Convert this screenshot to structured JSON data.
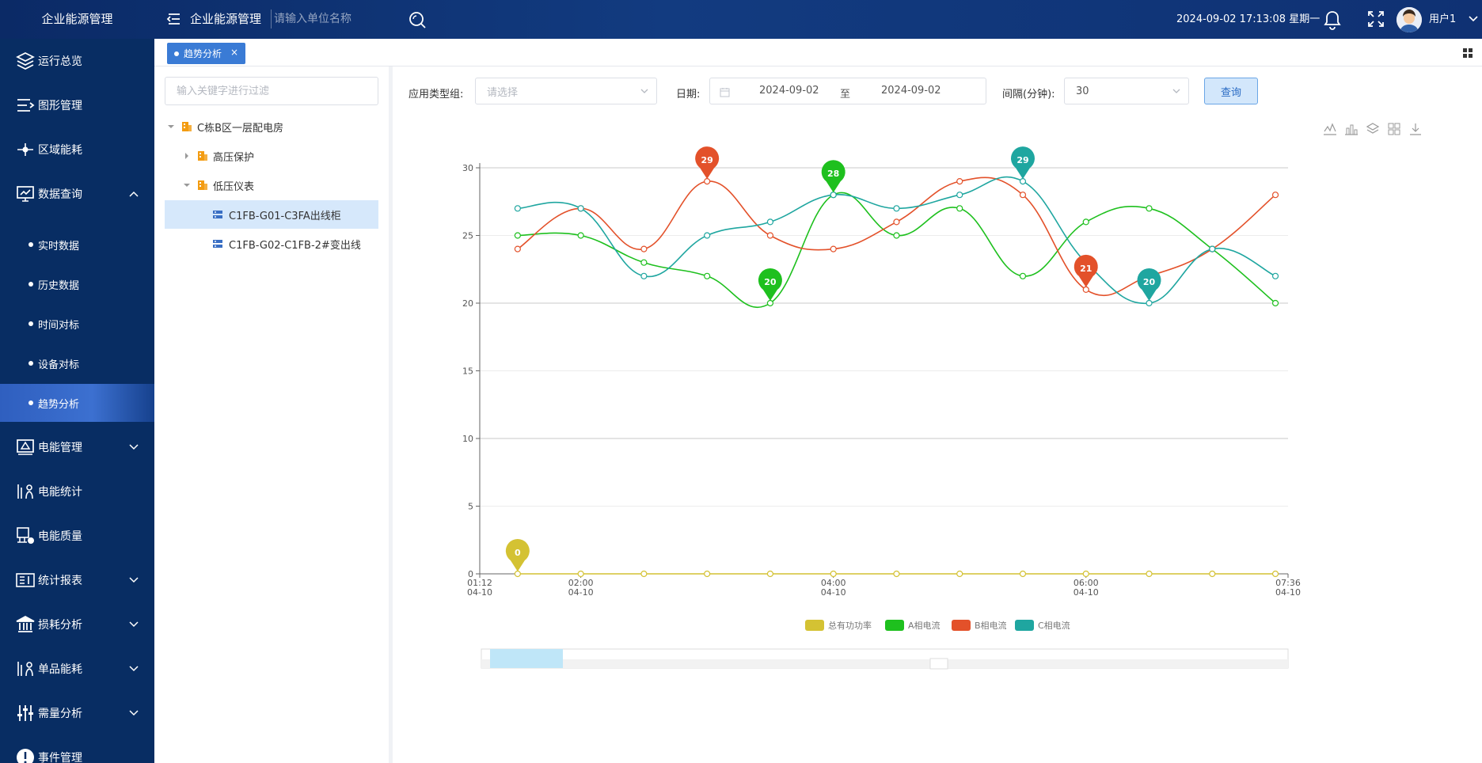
{
  "header": {
    "brand": "企业能源管理",
    "title": "企业能源管理",
    "search_placeholder": "请输入单位名称",
    "datetime": "2024-09-02 17:13:08 星期一",
    "username": "用户1"
  },
  "sidebar": {
    "items": [
      {
        "label": "运行总览",
        "icon": "layers-icon"
      },
      {
        "label": "图形管理",
        "icon": "menu-arrow-icon"
      },
      {
        "label": "区域能耗",
        "icon": "node-icon"
      },
      {
        "label": "数据查询",
        "icon": "monitor-icon",
        "expanded": true
      },
      {
        "label": "电能管理",
        "icon": "power-monitor-icon"
      },
      {
        "label": "电能统计",
        "icon": "stats-icon"
      },
      {
        "label": "电能质量",
        "icon": "quality-icon"
      },
      {
        "label": "统计报表",
        "icon": "report-icon"
      },
      {
        "label": "损耗分析",
        "icon": "bank-icon"
      },
      {
        "label": "单品能耗",
        "icon": "stats-icon"
      },
      {
        "label": "需量分析",
        "icon": "sliders-icon"
      },
      {
        "label": "事件管理",
        "icon": "alert-icon"
      }
    ],
    "sub_items": [
      {
        "label": "实时数据"
      },
      {
        "label": "历史数据"
      },
      {
        "label": "时间对标"
      },
      {
        "label": "设备对标"
      },
      {
        "label": "趋势分析",
        "active": true
      }
    ]
  },
  "tabs": [
    {
      "label": "趋势分析",
      "close": "×"
    }
  ],
  "tree": {
    "filter_placeholder": "输入关键字进行过滤",
    "nodes": [
      {
        "label": "C栋B区一层配电房"
      },
      {
        "label": "高压保护"
      },
      {
        "label": "低压仪表"
      },
      {
        "label": "C1FB-G01-C3FA出线柜",
        "selected": true
      },
      {
        "label": "C1FB-G02-C1FB-2#变出线"
      }
    ]
  },
  "filters": {
    "type_label": "应用类型组:",
    "type_placeholder": "请选择",
    "date_label": "日期:",
    "date_start": "2024-09-02",
    "date_sep": "至",
    "date_end": "2024-09-02",
    "interval_label": "间隔(分钟):",
    "interval_value": "30",
    "query_button": "查询"
  },
  "colors": {
    "total": "#d4c233",
    "a": "#1ec01e",
    "b": "#e3512a",
    "c": "#1fa6a0",
    "grid": "#c8c8c8",
    "accent": "#3a7bd5"
  },
  "chart_data": {
    "type": "line",
    "smooth": true,
    "ylim": [
      0,
      30
    ],
    "y_ticks": [
      "0",
      "5",
      "10",
      "15",
      "20",
      "25",
      "30"
    ],
    "x_ticks": [
      {
        "time": "01:12",
        "date": "04-10"
      },
      {
        "time": "02:00",
        "date": "04-10"
      },
      {
        "time": "04:00",
        "date": "04-10"
      },
      {
        "time": "06:00",
        "date": "04-10"
      },
      {
        "time": "07:36",
        "date": "04-10"
      }
    ],
    "x": [
      "01:30",
      "02:00",
      "02:30",
      "03:00",
      "03:30",
      "04:00",
      "04:30",
      "05:00",
      "05:30",
      "06:00",
      "06:30",
      "07:00",
      "07:30"
    ],
    "series": [
      {
        "name": "总有功功率",
        "values": [
          0,
          0,
          0,
          0,
          0,
          0,
          0,
          0,
          0,
          0,
          0,
          0,
          0
        ],
        "markers": [
          {
            "index": 0,
            "label": "0"
          }
        ]
      },
      {
        "name": "A相电流",
        "values": [
          25,
          25,
          23,
          22,
          20,
          28,
          25,
          27,
          22,
          26,
          27,
          24,
          20
        ],
        "markers": [
          {
            "index": 4,
            "label": "20"
          },
          {
            "index": 5,
            "label": "28"
          }
        ]
      },
      {
        "name": "B相电流",
        "values": [
          24,
          27,
          24,
          29,
          25,
          24,
          26,
          29,
          28,
          21,
          22,
          24,
          28
        ],
        "markers": [
          {
            "index": 3,
            "label": "29"
          },
          {
            "index": 9,
            "label": "21"
          }
        ]
      },
      {
        "name": "C相电流",
        "values": [
          27,
          27,
          22,
          25,
          26,
          28,
          27,
          28,
          29,
          23,
          20,
          24,
          22
        ],
        "markers": [
          {
            "index": 8,
            "label": "29"
          },
          {
            "index": 10,
            "label": "20"
          }
        ]
      }
    ],
    "legend_position": "bottom"
  }
}
